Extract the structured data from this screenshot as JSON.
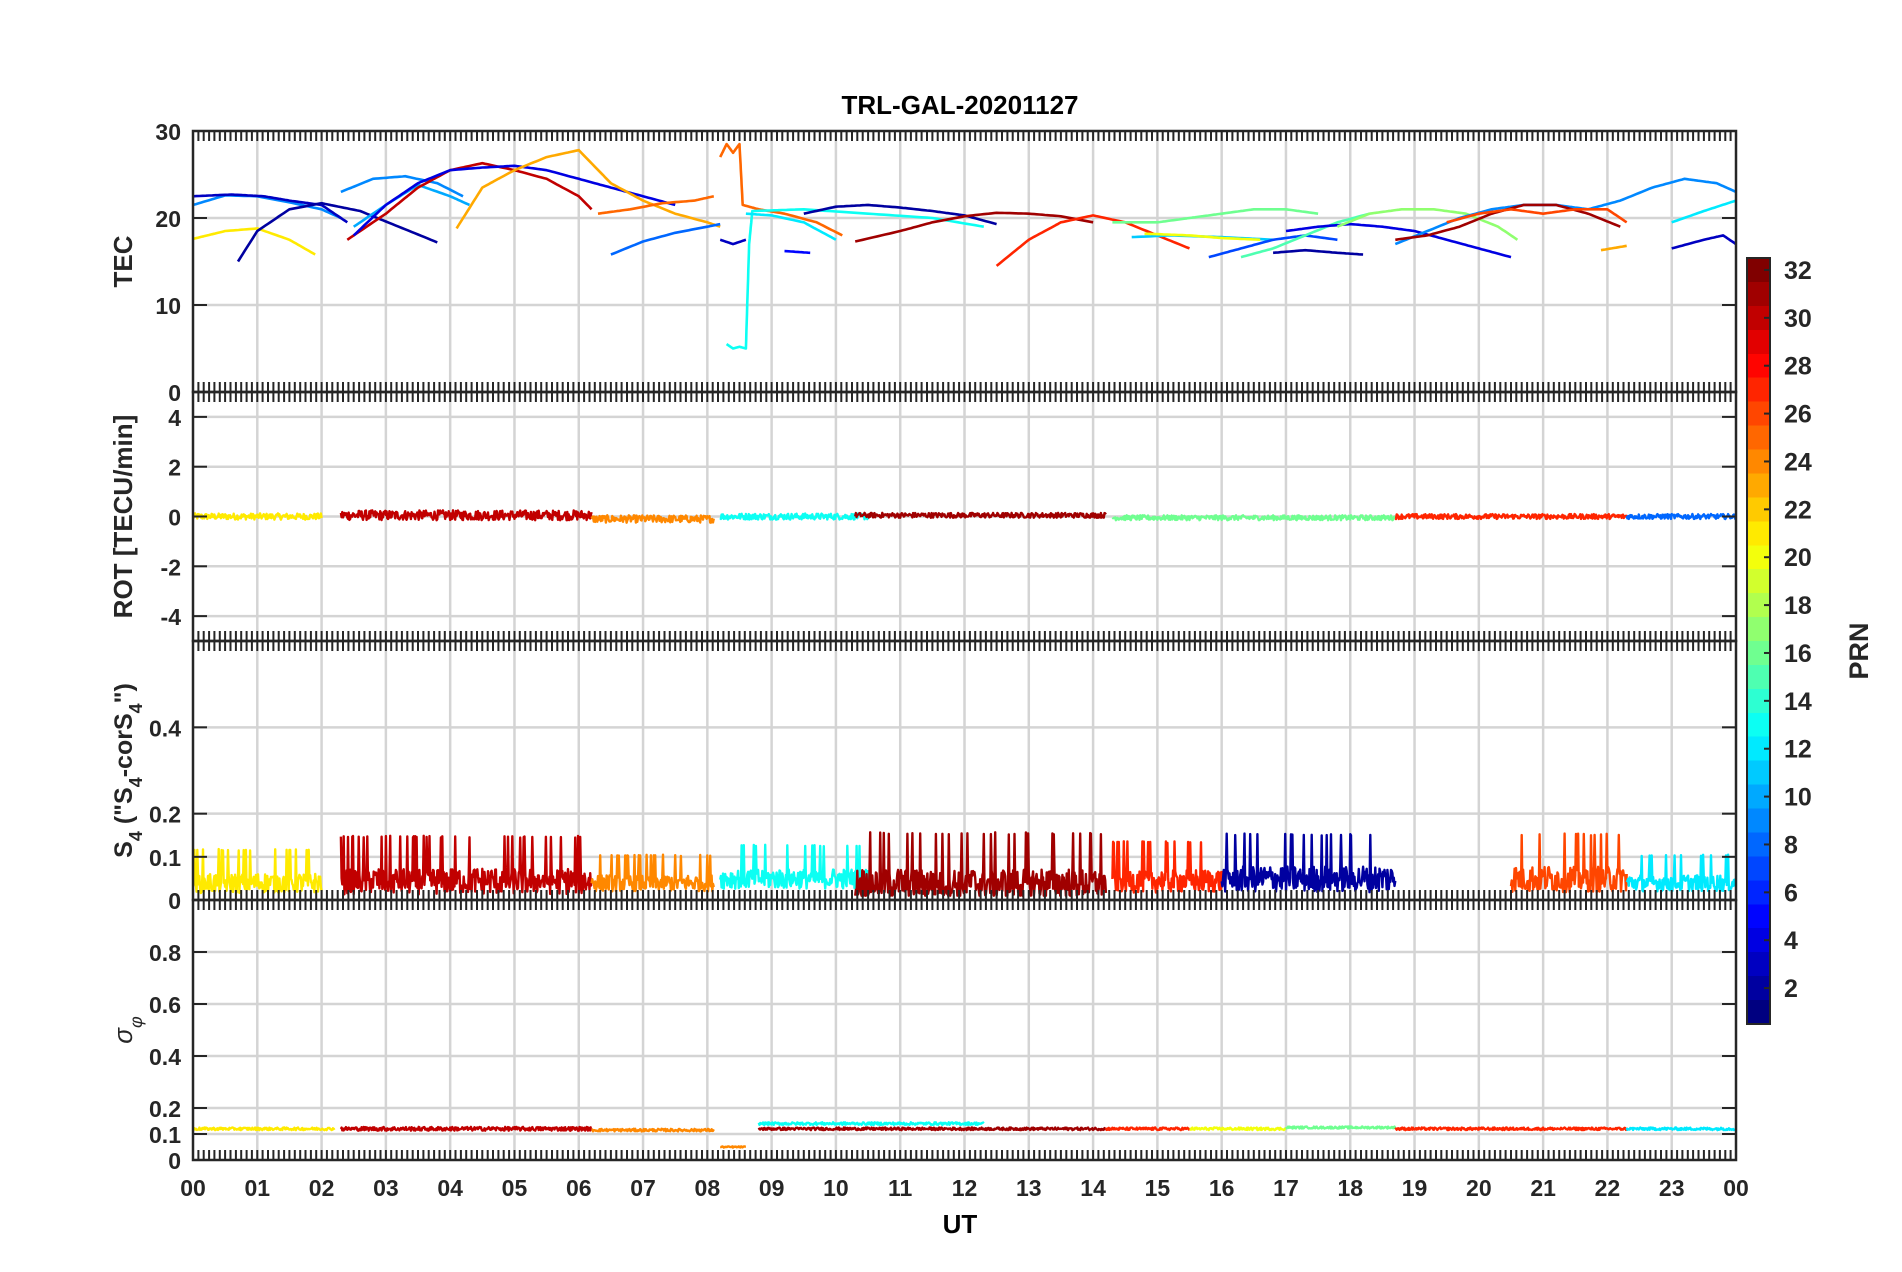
{
  "figure": {
    "title": "TRL-GAL-20201127",
    "xlabel": "UT",
    "x_ticks": [
      "00",
      "01",
      "02",
      "03",
      "04",
      "05",
      "06",
      "07",
      "08",
      "09",
      "10",
      "11",
      "12",
      "13",
      "14",
      "15",
      "16",
      "17",
      "18",
      "19",
      "20",
      "21",
      "22",
      "23",
      "00"
    ]
  },
  "colorbar": {
    "label": "PRN",
    "range": [
      1,
      32
    ],
    "tick_values": [
      2,
      4,
      6,
      8,
      10,
      12,
      14,
      16,
      18,
      20,
      22,
      24,
      26,
      28,
      30,
      32
    ],
    "tick_labels": [
      "2",
      "4",
      "6",
      "8",
      "10",
      "12",
      "14",
      "16",
      "18",
      "20",
      "22",
      "24",
      "26",
      "28",
      "30",
      "32"
    ],
    "colormap": "jet"
  },
  "chart_data": [
    {
      "type": "line",
      "panel": "TEC",
      "ylabel": "TEC",
      "xlim": [
        0,
        24
      ],
      "ylim": [
        0,
        30
      ],
      "y_ticks": [
        0,
        10,
        20,
        30
      ],
      "y_tick_labels": [
        "0",
        "10",
        "20",
        "30"
      ],
      "grid": true,
      "series": [
        {
          "prn": 9,
          "x": [
            0.0,
            0.5,
            1.0,
            1.5,
            2.0,
            2.3
          ],
          "y": [
            21.5,
            22.6,
            22.5,
            21.8,
            21.0,
            20.0
          ]
        },
        {
          "prn": 3,
          "x": [
            0.0,
            0.6,
            1.1,
            1.5,
            2.0,
            2.4
          ],
          "y": [
            22.5,
            22.7,
            22.5,
            22.0,
            21.5,
            19.5
          ]
        },
        {
          "prn": 21,
          "x": [
            0.0,
            0.5,
            1.0,
            1.5,
            1.9
          ],
          "y": [
            17.6,
            18.5,
            18.8,
            17.5,
            15.8
          ]
        },
        {
          "prn": 2,
          "x": [
            0.7,
            1.0,
            1.5,
            2.0,
            2.6,
            3.2,
            3.8
          ],
          "y": [
            15.0,
            18.5,
            21.0,
            21.7,
            20.8,
            19.0,
            17.2
          ]
        },
        {
          "prn": 10,
          "x": [
            2.5,
            3.0,
            3.5,
            4.0,
            4.3
          ],
          "y": [
            19.0,
            21.5,
            23.8,
            22.5,
            21.5
          ]
        },
        {
          "prn": 9,
          "x": [
            2.3,
            2.8,
            3.3,
            3.8,
            4.2
          ],
          "y": [
            23.0,
            24.5,
            24.8,
            24.0,
            22.5
          ]
        },
        {
          "prn": 30,
          "x": [
            2.4,
            3.0,
            3.5,
            4.0,
            4.5,
            5.0,
            5.5,
            6.0,
            6.2
          ],
          "y": [
            17.5,
            20.5,
            23.5,
            25.5,
            26.3,
            25.5,
            24.5,
            22.5,
            21.0
          ]
        },
        {
          "prn": 4,
          "x": [
            2.5,
            3.0,
            3.5,
            4.0,
            4.5,
            5.0,
            5.5,
            6.0,
            6.5,
            7.0,
            7.5
          ],
          "y": [
            18.0,
            21.5,
            24.0,
            25.5,
            25.8,
            26.0,
            25.5,
            24.5,
            23.5,
            22.5,
            21.5
          ]
        },
        {
          "prn": 23,
          "x": [
            4.1,
            4.5,
            5.0,
            5.5,
            6.0,
            6.5,
            7.0,
            7.5,
            8.0,
            8.2
          ],
          "y": [
            18.8,
            23.5,
            25.5,
            27.0,
            27.8,
            24.0,
            22.0,
            20.5,
            19.5,
            19.0
          ]
        },
        {
          "prn": 25,
          "x": [
            6.3,
            6.8,
            7.3,
            7.8,
            8.1
          ],
          "y": [
            20.5,
            21.0,
            21.7,
            22.0,
            22.5
          ]
        },
        {
          "prn": 25,
          "x": [
            8.2,
            8.3,
            8.4,
            8.5,
            8.55,
            8.8,
            9.2,
            9.7,
            10.1
          ],
          "y": [
            27.0,
            28.5,
            27.5,
            28.5,
            21.5,
            21.0,
            20.5,
            19.5,
            18.0
          ]
        },
        {
          "prn": 8,
          "x": [
            6.5,
            7.0,
            7.5,
            8.0,
            8.2
          ],
          "y": [
            15.8,
            17.3,
            18.3,
            19.0,
            19.3
          ]
        },
        {
          "prn": 13,
          "x": [
            8.3,
            8.4,
            8.5,
            8.6,
            8.65,
            8.7,
            9.5,
            10.5,
            11.5,
            12.3
          ],
          "y": [
            5.5,
            5.0,
            5.2,
            5.0,
            17.0,
            20.8,
            21.0,
            20.5,
            20.0,
            19.0
          ]
        },
        {
          "prn": 3,
          "x": [
            8.2,
            8.4,
            8.6
          ],
          "y": [
            17.5,
            17.0,
            17.5
          ]
        },
        {
          "prn": 5,
          "x": [
            9.2,
            9.6
          ],
          "y": [
            16.2,
            16.0
          ]
        },
        {
          "prn": 12,
          "x": [
            8.6,
            9.0,
            9.5,
            10.0
          ],
          "y": [
            20.5,
            20.3,
            19.5,
            17.5
          ]
        },
        {
          "prn": 2,
          "x": [
            9.5,
            10.0,
            10.5,
            11.0,
            11.5,
            12.0,
            12.5
          ],
          "y": [
            20.5,
            21.3,
            21.5,
            21.2,
            20.8,
            20.3,
            19.3
          ]
        },
        {
          "prn": 31,
          "x": [
            10.3,
            11.0,
            11.5,
            12.0,
            12.5,
            13.0,
            13.5,
            14.0
          ],
          "y": [
            17.3,
            18.5,
            19.5,
            20.2,
            20.6,
            20.5,
            20.2,
            19.5
          ]
        },
        {
          "prn": 27,
          "x": [
            12.5,
            13.0,
            13.5,
            14.0,
            14.5,
            15.0,
            15.5
          ],
          "y": [
            14.5,
            17.5,
            19.5,
            20.3,
            19.5,
            18.0,
            16.5
          ]
        },
        {
          "prn": 11,
          "x": [
            14.6,
            15.2,
            16.0,
            16.8
          ],
          "y": [
            17.8,
            18.0,
            17.8,
            17.5
          ]
        },
        {
          "prn": 20,
          "x": [
            14.8,
            15.5,
            16.0,
            16.6
          ],
          "y": [
            18.2,
            18.0,
            17.7,
            17.5
          ]
        },
        {
          "prn": 16,
          "x": [
            14.3,
            15.0,
            15.5,
            16.0,
            16.5,
            17.0,
            17.5
          ],
          "y": [
            19.5,
            19.5,
            20.0,
            20.5,
            21.0,
            21.0,
            20.5
          ]
        },
        {
          "prn": 7,
          "x": [
            15.8,
            16.3,
            16.8,
            17.3,
            17.8
          ],
          "y": [
            15.5,
            16.5,
            17.5,
            18.0,
            17.5
          ]
        },
        {
          "prn": 15,
          "x": [
            16.3,
            16.8,
            17.3,
            17.8,
            18.3
          ],
          "y": [
            15.5,
            16.5,
            18.0,
            19.5,
            20.5
          ]
        },
        {
          "prn": 2,
          "x": [
            16.8,
            17.3,
            17.8,
            18.2
          ],
          "y": [
            16.0,
            16.3,
            16.0,
            15.8
          ]
        },
        {
          "prn": 4,
          "x": [
            17.0,
            17.5,
            18.0,
            18.5,
            19.0,
            19.5,
            20.0,
            20.5
          ],
          "y": [
            18.5,
            19.0,
            19.3,
            19.0,
            18.5,
            17.5,
            16.5,
            15.5
          ]
        },
        {
          "prn": 17,
          "x": [
            17.8,
            18.3,
            18.8,
            19.3,
            19.8,
            20.3,
            20.6
          ],
          "y": [
            19.0,
            20.5,
            21.0,
            21.0,
            20.5,
            19.0,
            17.5
          ]
        },
        {
          "prn": 9,
          "x": [
            18.7,
            19.2,
            19.7,
            20.2,
            20.7,
            21.2,
            21.7,
            22.2,
            22.7,
            23.2,
            23.7,
            24.0
          ],
          "y": [
            17.0,
            18.5,
            20.0,
            21.0,
            21.5,
            21.5,
            21.0,
            22.0,
            23.5,
            24.5,
            24.0,
            23.0
          ]
        },
        {
          "prn": 31,
          "x": [
            18.7,
            19.2,
            19.7,
            20.2,
            20.7,
            21.2,
            21.7,
            22.2
          ],
          "y": [
            17.5,
            18.0,
            19.0,
            20.5,
            21.5,
            21.5,
            20.5,
            19.0
          ]
        },
        {
          "prn": 26,
          "x": [
            19.5,
            20.0,
            20.5,
            21.0,
            21.5,
            22.0,
            22.3
          ],
          "y": [
            19.5,
            20.5,
            21.0,
            20.5,
            21.0,
            21.0,
            19.5
          ]
        },
        {
          "prn": 23,
          "x": [
            21.9,
            22.3
          ],
          "y": [
            16.3,
            16.8
          ]
        },
        {
          "prn": 12,
          "x": [
            23.0,
            23.5,
            24.0
          ],
          "y": [
            19.5,
            20.8,
            22.0
          ]
        },
        {
          "prn": 3,
          "x": [
            23.0,
            23.5,
            23.8,
            24.0
          ],
          "y": [
            16.5,
            17.5,
            18.0,
            17.0
          ]
        }
      ]
    },
    {
      "type": "line",
      "panel": "ROT",
      "ylabel": "ROT [TECU/min]",
      "xlim": [
        0,
        24
      ],
      "ylim": [
        -5,
        5
      ],
      "y_ticks": [
        -4,
        -2,
        0,
        2,
        4
      ],
      "y_tick_labels": [
        "-4",
        "-2",
        "0",
        "2",
        "4"
      ],
      "grid": true,
      "series": [
        {
          "prn": 21,
          "x": [
            0.0,
            2.0
          ],
          "y_mean": 0.0,
          "amplitude": 0.25
        },
        {
          "prn": 30,
          "x": [
            2.3,
            6.2
          ],
          "y_mean": 0.05,
          "amplitude": 0.4
        },
        {
          "prn": 24,
          "x": [
            6.2,
            8.1
          ],
          "y_mean": -0.1,
          "amplitude": 0.3
        },
        {
          "prn": 13,
          "x": [
            8.2,
            10.5
          ],
          "y_mean": 0.0,
          "amplitude": 0.25
        },
        {
          "prn": 31,
          "x": [
            10.3,
            14.2
          ],
          "y_mean": 0.05,
          "amplitude": 0.2
        },
        {
          "prn": 16,
          "x": [
            14.3,
            18.7
          ],
          "y_mean": -0.05,
          "amplitude": 0.2
        },
        {
          "prn": 27,
          "x": [
            18.7,
            22.3
          ],
          "y_mean": 0.0,
          "amplitude": 0.2
        },
        {
          "prn": 8,
          "x": [
            22.3,
            24.0
          ],
          "y_mean": 0.0,
          "amplitude": 0.2
        }
      ]
    },
    {
      "type": "line",
      "panel": "S4",
      "ylabel": "S4 (\"S4-corS4\")",
      "xlim": [
        0,
        24
      ],
      "ylim": [
        0,
        0.6
      ],
      "y_ticks": [
        0,
        0.1,
        0.2,
        0.4
      ],
      "y_tick_labels": [
        "0",
        "0.1",
        "0.2",
        "0.4"
      ],
      "grid": true,
      "series": [
        {
          "prn": 21,
          "x": [
            0.0,
            2.0
          ],
          "y_mean": 0.04,
          "amplitude": 0.06
        },
        {
          "prn": 30,
          "x": [
            2.3,
            6.2
          ],
          "y_mean": 0.045,
          "amplitude": 0.08
        },
        {
          "prn": 24,
          "x": [
            6.2,
            8.1
          ],
          "y_mean": 0.04,
          "amplitude": 0.05
        },
        {
          "prn": 13,
          "x": [
            8.2,
            10.5
          ],
          "y_mean": 0.05,
          "amplitude": 0.06
        },
        {
          "prn": 31,
          "x": [
            10.3,
            14.2
          ],
          "y_mean": 0.04,
          "amplitude": 0.09
        },
        {
          "prn": 27,
          "x": [
            14.3,
            16.0
          ],
          "y_mean": 0.045,
          "amplitude": 0.07
        },
        {
          "prn": 2,
          "x": [
            16.0,
            18.7
          ],
          "y_mean": 0.05,
          "amplitude": 0.08
        },
        {
          "prn": 26,
          "x": [
            20.5,
            22.3
          ],
          "y_mean": 0.05,
          "amplitude": 0.08
        },
        {
          "prn": 12,
          "x": [
            22.3,
            24.0
          ],
          "y_mean": 0.04,
          "amplitude": 0.05
        }
      ]
    },
    {
      "type": "line",
      "panel": "sigma_phi",
      "ylabel": "σφ",
      "xlim": [
        0,
        24
      ],
      "ylim": [
        0,
        1.0
      ],
      "y_ticks": [
        0,
        0.1,
        0.2,
        0.4,
        0.6,
        0.8
      ],
      "y_tick_labels": [
        "0",
        "0.1",
        "0.2",
        "0.4",
        "0.6",
        "0.8"
      ],
      "grid": true,
      "series": [
        {
          "prn": 21,
          "x": [
            0.0,
            2.2
          ],
          "y_mean": 0.12,
          "amplitude": 0.01
        },
        {
          "prn": 30,
          "x": [
            2.3,
            6.2
          ],
          "y_mean": 0.12,
          "amplitude": 0.015
        },
        {
          "prn": 24,
          "x": [
            6.2,
            8.1
          ],
          "y_mean": 0.115,
          "amplitude": 0.01
        },
        {
          "prn": 24,
          "x": [
            8.2,
            8.6
          ],
          "y_mean": 0.05,
          "amplitude": 0.005
        },
        {
          "prn": 13,
          "x": [
            8.8,
            12.3
          ],
          "y_mean": 0.14,
          "amplitude": 0.01
        },
        {
          "prn": 31,
          "x": [
            8.8,
            14.2
          ],
          "y_mean": 0.12,
          "amplitude": 0.01
        },
        {
          "prn": 27,
          "x": [
            14.2,
            15.5
          ],
          "y_mean": 0.12,
          "amplitude": 0.01
        },
        {
          "prn": 20,
          "x": [
            15.5,
            17.0
          ],
          "y_mean": 0.12,
          "amplitude": 0.01
        },
        {
          "prn": 16,
          "x": [
            17.0,
            18.7
          ],
          "y_mean": 0.125,
          "amplitude": 0.008
        },
        {
          "prn": 27,
          "x": [
            18.7,
            22.3
          ],
          "y_mean": 0.12,
          "amplitude": 0.01
        },
        {
          "prn": 12,
          "x": [
            22.3,
            24.0
          ],
          "y_mean": 0.12,
          "amplitude": 0.01
        }
      ]
    }
  ]
}
